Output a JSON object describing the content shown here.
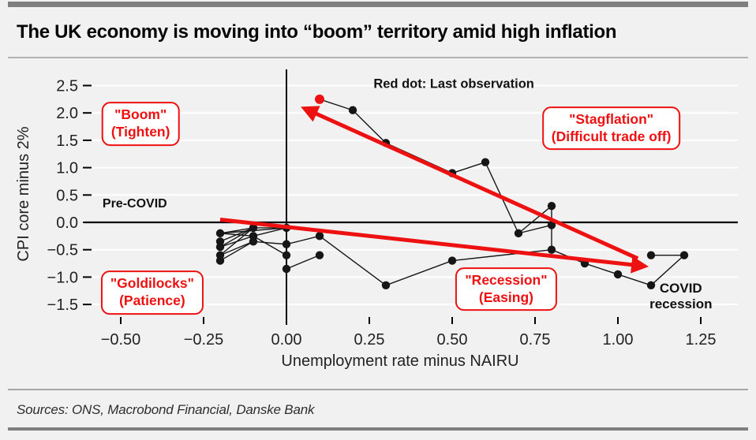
{
  "header": {
    "title": "The UK economy is moving into “boom” territory amid high inflation"
  },
  "footer": {
    "sources": "Sources: ONS, Macrobond Financial, Danske Bank"
  },
  "colors": {
    "accent_red": "#ee1111",
    "dot_black": "#161616",
    "background": "#f1f1f2",
    "gridline": "#ffffff",
    "axis_black": "#000000"
  },
  "chart_data": {
    "type": "scatter",
    "title": "",
    "xlabel": "Unemployment rate minus NAIRU",
    "ylabel": "CPI core minus 2%",
    "xlim": [
      -0.61,
      1.36
    ],
    "ylim": [
      -1.7,
      2.8
    ],
    "grid": "horizontal-only",
    "x_tick_values": [
      -0.5,
      -0.25,
      0.0,
      0.25,
      0.5,
      0.75,
      1.0,
      1.25
    ],
    "x_tick_labels": [
      "−0.50",
      "−0.25",
      "0.00",
      "0.25",
      "0.50",
      "0.75",
      "1.00",
      "1.25"
    ],
    "y_tick_values": [
      2.5,
      2.0,
      1.5,
      1.0,
      0.5,
      0.0,
      -0.5,
      -1.0,
      -1.5
    ],
    "y_tick_labels": [
      "2.5",
      "2.0",
      "1.5",
      "1.0",
      "0.5",
      "0.0",
      "−0.5",
      "−1.0",
      "−1.5"
    ],
    "points": [
      [
        -0.2,
        -0.2
      ],
      [
        -0.2,
        -0.35
      ],
      [
        -0.2,
        -0.45
      ],
      [
        -0.2,
        -0.6
      ],
      [
        -0.2,
        -0.7
      ],
      [
        -0.1,
        -0.1
      ],
      [
        -0.1,
        -0.25
      ],
      [
        -0.1,
        -0.35
      ],
      [
        0.0,
        -0.1
      ],
      [
        0.0,
        -0.4
      ],
      [
        0.0,
        -0.6
      ],
      [
        0.0,
        -0.85
      ],
      [
        0.1,
        -0.25
      ],
      [
        0.1,
        -0.6
      ],
      [
        0.3,
        -1.15
      ],
      [
        0.5,
        -0.7
      ],
      [
        0.8,
        -0.5
      ],
      [
        0.9,
        -0.75
      ],
      [
        1.0,
        -0.95
      ],
      [
        1.1,
        -1.15
      ],
      [
        1.2,
        -0.6
      ],
      [
        1.1,
        -0.6
      ],
      [
        0.8,
        -0.05
      ],
      [
        0.7,
        -0.2
      ],
      [
        0.8,
        0.3
      ],
      [
        0.6,
        1.1
      ],
      [
        0.5,
        0.9
      ],
      [
        0.3,
        1.45
      ],
      [
        0.2,
        2.05
      ]
    ],
    "last_observation": [
      0.1,
      2.25
    ],
    "segments": [
      [
        [
          -0.1,
          -0.1
        ],
        [
          -0.2,
          -0.2
        ]
      ],
      [
        [
          -0.1,
          -0.1
        ],
        [
          -0.2,
          -0.35
        ]
      ],
      [
        [
          -0.1,
          -0.1
        ],
        [
          -0.2,
          -0.45
        ]
      ],
      [
        [
          -0.1,
          -0.1
        ],
        [
          -0.2,
          -0.6
        ]
      ],
      [
        [
          -0.1,
          -0.25
        ],
        [
          -0.2,
          -0.2
        ]
      ],
      [
        [
          -0.1,
          -0.25
        ],
        [
          -0.2,
          -0.45
        ]
      ],
      [
        [
          -0.1,
          -0.35
        ],
        [
          -0.2,
          -0.6
        ]
      ],
      [
        [
          -0.1,
          -0.35
        ],
        [
          -0.2,
          -0.7
        ]
      ],
      [
        [
          0.0,
          -0.1
        ],
        [
          -0.1,
          -0.1
        ]
      ],
      [
        [
          0.0,
          -0.1
        ],
        [
          -0.1,
          -0.25
        ]
      ],
      [
        [
          0.0,
          -0.1
        ],
        [
          -0.2,
          -0.2
        ]
      ],
      [
        [
          0.0,
          -0.4
        ],
        [
          -0.1,
          -0.35
        ]
      ],
      [
        [
          0.0,
          -0.4
        ],
        [
          0.1,
          -0.25
        ]
      ],
      [
        [
          0.0,
          -0.6
        ],
        [
          -0.1,
          -0.25
        ]
      ],
      [
        [
          0.0,
          -0.85
        ],
        [
          0.1,
          -0.6
        ]
      ],
      [
        [
          0.1,
          -0.25
        ],
        [
          0.3,
          -1.15
        ]
      ],
      [
        [
          0.3,
          -1.15
        ],
        [
          0.5,
          -0.7
        ]
      ],
      [
        [
          0.5,
          -0.7
        ],
        [
          0.8,
          -0.5
        ]
      ],
      [
        [
          0.8,
          -0.5
        ],
        [
          0.9,
          -0.75
        ]
      ],
      [
        [
          0.9,
          -0.75
        ],
        [
          1.0,
          -0.95
        ]
      ],
      [
        [
          1.0,
          -0.95
        ],
        [
          1.1,
          -1.15
        ]
      ],
      [
        [
          1.1,
          -1.15
        ],
        [
          1.2,
          -0.6
        ]
      ],
      [
        [
          1.2,
          -0.6
        ],
        [
          1.1,
          -0.6
        ]
      ],
      [
        [
          0.8,
          -0.5
        ],
        [
          0.8,
          -0.05
        ]
      ],
      [
        [
          0.8,
          -0.05
        ],
        [
          0.7,
          -0.2
        ]
      ],
      [
        [
          0.7,
          -0.2
        ],
        [
          0.8,
          0.3
        ]
      ],
      [
        [
          0.8,
          0.3
        ],
        [
          0.8,
          -0.05
        ]
      ],
      [
        [
          0.6,
          1.1
        ],
        [
          0.7,
          -0.2
        ]
      ],
      [
        [
          0.5,
          0.9
        ],
        [
          0.6,
          1.1
        ]
      ],
      [
        [
          0.3,
          1.45
        ],
        [
          0.5,
          0.9
        ]
      ],
      [
        [
          0.2,
          2.05
        ],
        [
          0.3,
          1.45
        ]
      ],
      [
        [
          0.1,
          2.25
        ],
        [
          0.2,
          2.05
        ]
      ]
    ],
    "arrows": [
      {
        "name": "boom-trend-arrow",
        "from": [
          1.06,
          -0.66
        ],
        "to": [
          0.055,
          2.08
        ]
      },
      {
        "name": "recession-trend-arrow",
        "from": [
          -0.2,
          0.05
        ],
        "to": [
          1.08,
          -0.8
        ]
      }
    ],
    "annotations": {
      "note": {
        "text": "Red dot: Last observation",
        "x": 0.505,
        "y": 2.52
      },
      "pre_covid": {
        "text": "Pre-COVID",
        "x": -0.555,
        "y": 0.33
      },
      "covid": {
        "lines": [
          "COVID",
          "recession"
        ],
        "x": 1.19,
        "y": -1.35
      },
      "boxes": [
        {
          "name": "boom",
          "lines": [
            "\"Boom\"",
            "(Tighten)"
          ],
          "x": -0.44,
          "y": 1.8
        },
        {
          "name": "stagflation",
          "lines": [
            "\"Stagflation\"",
            "(Difficult trade off)"
          ],
          "x": 0.98,
          "y": 1.72
        },
        {
          "name": "goldilocks",
          "lines": [
            "\"Goldilocks\"",
            "(Patience)"
          ],
          "x": -0.405,
          "y": -1.28
        },
        {
          "name": "recession",
          "lines": [
            "\"Recession\"",
            "(Easing)"
          ],
          "x": 0.663,
          "y": -1.22
        }
      ]
    }
  }
}
